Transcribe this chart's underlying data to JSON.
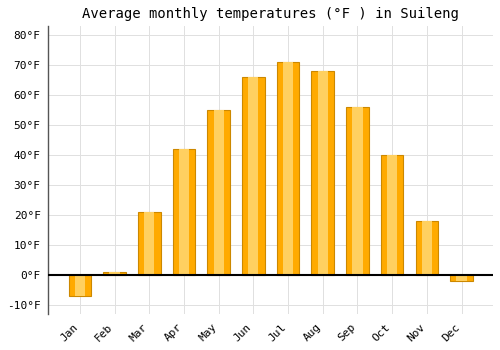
{
  "title": "Average monthly temperatures (°F ) in Suileng",
  "months": [
    "Jan",
    "Feb",
    "Mar",
    "Apr",
    "May",
    "Jun",
    "Jul",
    "Aug",
    "Sep",
    "Oct",
    "Nov",
    "Dec"
  ],
  "values": [
    -7,
    1,
    21,
    42,
    55,
    66,
    71,
    68,
    56,
    40,
    18,
    -2
  ],
  "bar_color_face": "#FFAA00",
  "bar_color_light": "#FFD060",
  "bar_edge_color": "#CC8800",
  "bar_edge_width": 0.8,
  "ylim": [
    -13,
    83
  ],
  "yticks": [
    -10,
    0,
    10,
    20,
    30,
    40,
    50,
    60,
    70,
    80
  ],
  "ytick_labels": [
    "-10°F",
    "0°F",
    "10°F",
    "20°F",
    "30°F",
    "40°F",
    "50°F",
    "60°F",
    "70°F",
    "80°F"
  ],
  "background_color": "#ffffff",
  "grid_color": "#e0e0e0",
  "zero_line_color": "#000000",
  "title_fontsize": 10,
  "tick_fontsize": 8,
  "font_family": "monospace",
  "figsize": [
    5.0,
    3.5
  ],
  "dpi": 100
}
